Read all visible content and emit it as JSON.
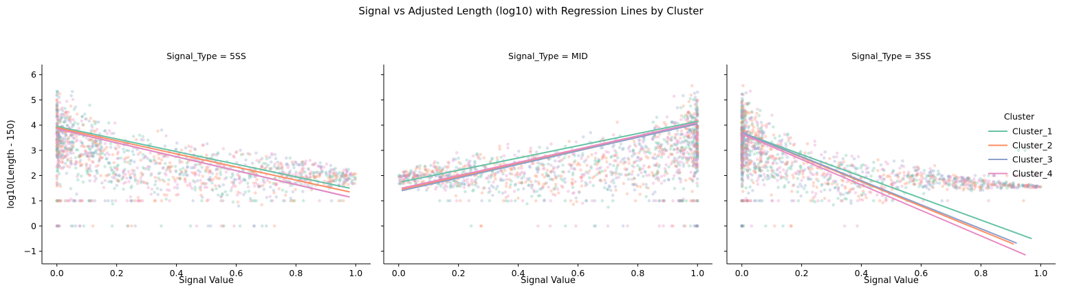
{
  "chart_data": {
    "type": "scatter",
    "title": "Signal vs Adjusted Length (log10) with Regression Lines by Cluster",
    "xlabel": "Signal Value",
    "ylabel": "log10(Length - 150)",
    "xlim": [
      -0.05,
      1.05
    ],
    "ylim": [
      -1.5,
      6.4
    ],
    "xticks": [
      "0.0",
      "0.2",
      "0.4",
      "0.6",
      "0.8",
      "1.0"
    ],
    "xtick_values": [
      0,
      0.2,
      0.4,
      0.6,
      0.8,
      1.0
    ],
    "yticks": [
      "−1",
      "0",
      "1",
      "2",
      "3",
      "4",
      "5",
      "6"
    ],
    "ytick_values": [
      -1,
      0,
      1,
      2,
      3,
      4,
      5,
      6
    ],
    "grid": false,
    "legend": {
      "title": "Cluster",
      "placement": "right",
      "entries": [
        "Cluster_1",
        "Cluster_2",
        "Cluster_3",
        "Cluster_4"
      ]
    },
    "colors": {
      "Cluster_1": "#66c2a5",
      "Cluster_2": "#fc8d62",
      "Cluster_3": "#8da0cb",
      "Cluster_4": "#e78ac3"
    },
    "panels": [
      {
        "title": "Signal_Type = 5SS",
        "regression_lines": [
          {
            "cluster": "Cluster_1",
            "x": [
              0.0,
              0.98
            ],
            "y": [
              3.95,
              1.5
            ]
          },
          {
            "cluster": "Cluster_2",
            "x": [
              0.0,
              0.98
            ],
            "y": [
              3.9,
              1.35
            ]
          },
          {
            "cluster": "Cluster_3",
            "x": [
              0.0,
              0.96
            ],
            "y": [
              3.85,
              1.2
            ]
          },
          {
            "cluster": "Cluster_4",
            "x": [
              0.0,
              0.98
            ],
            "y": [
              3.85,
              1.15
            ]
          }
        ],
        "scatter_envelope": {
          "x": [
            0.0,
            0.2,
            0.4,
            0.6,
            0.8,
            1.0
          ],
          "upper": [
            6.1,
            4.5,
            4.0,
            3.6,
            3.2,
            2.3
          ],
          "lower": [
            0.0,
            0.0,
            0.0,
            0.0,
            0.5,
            1.4
          ]
        }
      },
      {
        "title": "Signal_Type = MID",
        "regression_lines": [
          {
            "cluster": "Cluster_1",
            "x": [
              0.01,
              1.0
            ],
            "y": [
              1.75,
              4.15
            ]
          },
          {
            "cluster": "Cluster_2",
            "x": [
              0.01,
              1.0
            ],
            "y": [
              1.45,
              4.05
            ]
          },
          {
            "cluster": "Cluster_3",
            "x": [
              0.01,
              1.0
            ],
            "y": [
              1.4,
              4.05
            ]
          },
          {
            "cluster": "Cluster_4",
            "x": [
              0.01,
              1.0
            ],
            "y": [
              1.5,
              4.1
            ]
          }
        ],
        "scatter_envelope": {
          "x": [
            0.0,
            0.2,
            0.4,
            0.6,
            0.8,
            1.0
          ],
          "upper": [
            2.3,
            3.2,
            3.6,
            4.0,
            4.5,
            6.1
          ],
          "lower": [
            1.4,
            0.5,
            0.0,
            0.0,
            0.0,
            0.0
          ]
        }
      },
      {
        "title": "Signal_Type = 3SS",
        "regression_lines": [
          {
            "cluster": "Cluster_1",
            "x": [
              0.0,
              0.97
            ],
            "y": [
              3.7,
              -0.5
            ]
          },
          {
            "cluster": "Cluster_2",
            "x": [
              0.0,
              0.91
            ],
            "y": [
              3.7,
              -0.72
            ]
          },
          {
            "cluster": "Cluster_3",
            "x": [
              0.0,
              0.92
            ],
            "y": [
              3.7,
              -0.68
            ]
          },
          {
            "cluster": "Cluster_4",
            "x": [
              0.0,
              0.95
            ],
            "y": [
              3.65,
              -1.15
            ]
          }
        ],
        "scatter_envelope": {
          "x": [
            0.0,
            0.2,
            0.4,
            0.6,
            0.8,
            1.0
          ],
          "upper": [
            6.0,
            3.8,
            3.2,
            2.6,
            2.0,
            1.6
          ],
          "lower": [
            0.0,
            0.0,
            0.0,
            1.0,
            1.2,
            1.5
          ]
        }
      }
    ]
  }
}
